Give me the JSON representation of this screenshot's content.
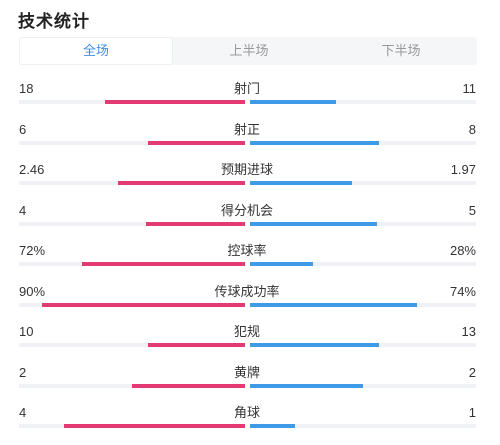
{
  "header": {
    "title": "技术统计"
  },
  "tabs": [
    {
      "label": "全场",
      "active": true
    },
    {
      "label": "上半场",
      "active": false
    },
    {
      "label": "下半场",
      "active": false
    }
  ],
  "colors": {
    "home": "#e23a72",
    "away": "#3f9ae8",
    "active_tab": "#3d8fe6"
  },
  "stats": [
    {
      "name": "射门",
      "home": "18",
      "away": "11",
      "home_fraction": 0.62,
      "away_fraction": 0.38
    },
    {
      "name": "射正",
      "home": "6",
      "away": "8",
      "home_fraction": 0.43,
      "away_fraction": 0.57
    },
    {
      "name": "预期进球",
      "home": "2.46",
      "away": "1.97",
      "home_fraction": 0.56,
      "away_fraction": 0.45
    },
    {
      "name": "得分机会",
      "home": "4",
      "away": "5",
      "home_fraction": 0.44,
      "away_fraction": 0.56
    },
    {
      "name": "控球率",
      "home": "72%",
      "away": "28%",
      "home_fraction": 0.72,
      "away_fraction": 0.28
    },
    {
      "name": "传球成功率",
      "home": "90%",
      "away": "74%",
      "home_fraction": 0.9,
      "away_fraction": 0.74
    },
    {
      "name": "犯规",
      "home": "10",
      "away": "13",
      "home_fraction": 0.43,
      "away_fraction": 0.57
    },
    {
      "name": "黄牌",
      "home": "2",
      "away": "2",
      "home_fraction": 0.5,
      "away_fraction": 0.5
    },
    {
      "name": "角球",
      "home": "4",
      "away": "1",
      "home_fraction": 0.8,
      "away_fraction": 0.2
    }
  ]
}
